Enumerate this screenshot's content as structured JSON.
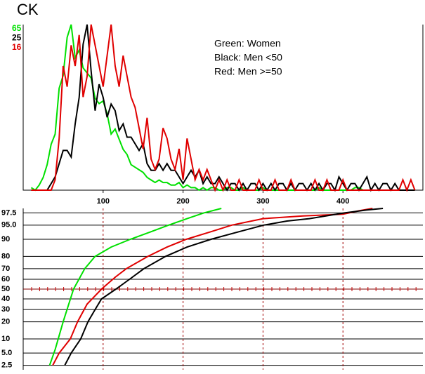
{
  "title": "CK",
  "chart_data": [
    {
      "type": "line",
      "legend": [
        "Green: Women",
        "Black: Men <50",
        "Red: Men >=50"
      ],
      "x": [
        10,
        15,
        20,
        25,
        30,
        35,
        40,
        45,
        50,
        55,
        60,
        65,
        70,
        75,
        80,
        85,
        90,
        95,
        100,
        105,
        110,
        115,
        120,
        125,
        130,
        135,
        140,
        145,
        150,
        155,
        160,
        165,
        170,
        175,
        180,
        185,
        190,
        195,
        200,
        205,
        210,
        215,
        220,
        225,
        230,
        235,
        240,
        245,
        250,
        255,
        260,
        265,
        270,
        275,
        280,
        285,
        290,
        295,
        300,
        305,
        310,
        315,
        320,
        325,
        330,
        335,
        340,
        345,
        350,
        355,
        360,
        365,
        370,
        375,
        380,
        385,
        390,
        395,
        400,
        405,
        410,
        415,
        420,
        425,
        430,
        435,
        440,
        445,
        450,
        455,
        460,
        465,
        470,
        475,
        480,
        485,
        490
      ],
      "xlim": [
        0,
        500
      ],
      "xticks": [
        100,
        200,
        300,
        400
      ],
      "series": [
        {
          "name": "Women",
          "color": "#00e000",
          "ylim": [
            0,
            65
          ],
          "values": [
            1,
            0,
            2,
            5,
            10,
            18,
            22,
            40,
            45,
            60,
            65,
            52,
            55,
            48,
            46,
            44,
            36,
            34,
            35,
            30,
            22,
            24,
            20,
            16,
            14,
            10,
            9,
            8,
            7,
            5,
            4,
            3,
            4,
            3,
            3,
            2,
            2,
            3,
            1,
            2,
            1,
            1,
            0,
            1,
            0,
            1,
            1,
            0,
            0,
            1,
            1,
            0,
            0,
            1,
            0,
            0,
            0,
            0,
            1,
            0,
            0,
            0,
            0,
            0,
            0,
            0,
            0,
            0,
            0,
            0,
            0,
            0,
            1,
            0,
            0,
            0,
            0,
            0,
            0,
            0,
            0,
            1,
            1,
            0,
            0,
            0,
            0,
            0,
            0,
            0,
            0,
            0,
            0,
            0,
            0,
            0,
            0
          ]
        },
        {
          "name": "Men <50",
          "color": "#000000",
          "ylim": [
            0,
            25
          ],
          "values": [
            0,
            0,
            0,
            0,
            0,
            1,
            2,
            4,
            6,
            6,
            5,
            10,
            14,
            22,
            25,
            18,
            12,
            16,
            14,
            11,
            13,
            12,
            9,
            10,
            8,
            8,
            7,
            6,
            7,
            4,
            3,
            3,
            4,
            3,
            4,
            3,
            3,
            2,
            1,
            2,
            3,
            2,
            3,
            1,
            2,
            1,
            1,
            2,
            1,
            0,
            1,
            1,
            0,
            1,
            0,
            1,
            1,
            0,
            1,
            0,
            1,
            0,
            1,
            1,
            0,
            1,
            0,
            1,
            1,
            0,
            1,
            0,
            1,
            0,
            1,
            1,
            0,
            2,
            1,
            0,
            1,
            1,
            0,
            1,
            2,
            0,
            1,
            0,
            1,
            1,
            0,
            1,
            0,
            0,
            0,
            0,
            0
          ]
        },
        {
          "name": "Men >=50",
          "color": "#e00000",
          "ylim": [
            0,
            16
          ],
          "values": [
            0,
            0,
            0,
            0,
            0,
            0,
            1,
            5,
            12,
            10,
            14,
            12,
            15,
            9,
            11,
            16,
            14,
            12,
            10,
            13,
            16,
            12,
            10,
            13,
            11,
            9,
            8,
            6,
            4,
            7,
            3,
            2,
            3,
            6,
            5,
            3,
            2,
            4,
            1,
            5,
            3,
            1,
            2,
            1,
            2,
            1,
            0,
            1,
            0,
            1,
            0,
            0,
            1,
            0,
            0,
            0,
            0,
            1,
            0,
            0,
            0,
            1,
            0,
            0,
            0,
            1,
            0,
            0,
            0,
            0,
            0,
            1,
            0,
            0,
            1,
            0,
            0,
            0,
            1,
            0,
            0,
            0,
            0,
            0,
            0,
            0,
            0,
            0,
            0,
            0,
            0,
            0,
            0,
            1,
            0,
            1,
            0
          ]
        }
      ]
    },
    {
      "type": "probability",
      "scale": "probit",
      "xlim": [
        0,
        500
      ],
      "ylim": [
        1.9,
        98.1
      ],
      "yticks": [
        2.5,
        {
          "value": 5,
          "label": "5.0"
        },
        10,
        20,
        30,
        40,
        50,
        60,
        70,
        80,
        90,
        {
          "value": 95,
          "label": "95.0"
        },
        97.5
      ],
      "grid": true,
      "series": [
        {
          "name": "Women",
          "color": "#00e000",
          "x": [
            33,
            40,
            50,
            63,
            77,
            90,
            110,
            134,
            160,
            182,
            205,
            226,
            248
          ],
          "values": [
            2.5,
            6,
            20,
            50,
            70,
            80,
            86,
            90,
            93,
            95,
            96.5,
            97.5,
            98.1
          ]
        },
        {
          "name": "Men >=50",
          "color": "#e00000",
          "x": [
            37,
            45,
            59,
            68,
            80,
            98,
            115,
            129,
            156,
            180,
            204,
            235,
            261,
            300,
            350,
            400,
            420,
            437
          ],
          "values": [
            2.5,
            5,
            10,
            20,
            35,
            50,
            62,
            70,
            80,
            86,
            90,
            93,
            95,
            96.5,
            97,
            97.3,
            97.8,
            98.1
          ]
        },
        {
          "name": "Men <50",
          "color": "#000000",
          "x": [
            52,
            60,
            72,
            81,
            90,
            98,
            116,
            133,
            151,
            178,
            205,
            235,
            270,
            301,
            330,
            358,
            402,
            430,
            450
          ],
          "values": [
            2.5,
            5,
            10,
            20,
            30,
            40,
            50,
            60,
            70,
            80,
            86,
            90,
            93,
            95,
            96,
            96.5,
            97.5,
            97.9,
            98.1
          ]
        }
      ]
    }
  ]
}
